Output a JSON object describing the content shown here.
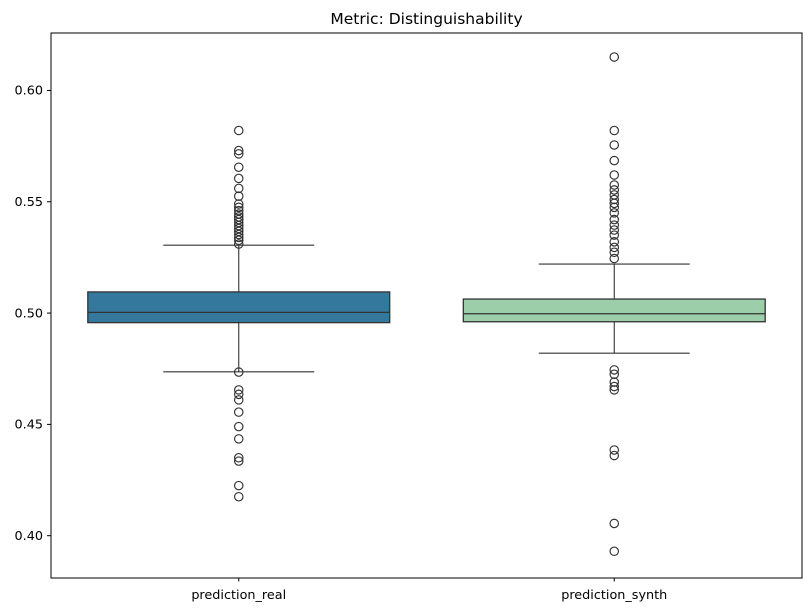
{
  "chart_data": {
    "type": "boxplot",
    "title": "Metric: Distinguishability",
    "categories": [
      "prediction_real",
      "prediction_synth"
    ],
    "ylim": [
      0.381,
      0.6258
    ],
    "yticks": [
      0.4,
      0.45,
      0.5,
      0.55,
      0.6
    ],
    "ytick_labels": [
      "0.40",
      "0.45",
      "0.50",
      "0.55",
      "0.60"
    ],
    "grid": false,
    "legend": "none",
    "series": [
      {
        "name": "prediction_real",
        "color": "#35789E",
        "q1": 0.4957,
        "median": 0.5003,
        "q3": 0.5095,
        "whisker_low": 0.4736,
        "whisker_high": 0.5305,
        "outliers_high": [
          0.582,
          0.573,
          0.5715,
          0.5655,
          0.5605,
          0.556,
          0.5525,
          0.549,
          0.5475,
          0.546,
          0.5445,
          0.5432,
          0.542,
          0.5407,
          0.5393,
          0.538,
          0.5367,
          0.5353,
          0.534,
          0.5327,
          0.531
        ],
        "outliers_low": [
          0.4735,
          0.4655,
          0.4635,
          0.461,
          0.4555,
          0.449,
          0.4435,
          0.435,
          0.4335,
          0.4225,
          0.4175
        ]
      },
      {
        "name": "prediction_synth",
        "color": "#9CCEA9",
        "q1": 0.4961,
        "median": 0.4997,
        "q3": 0.5063,
        "whisker_low": 0.482,
        "whisker_high": 0.522,
        "outliers_high": [
          0.615,
          0.582,
          0.5755,
          0.5685,
          0.562,
          0.5575,
          0.5553,
          0.5531,
          0.551,
          0.5493,
          0.5475,
          0.545,
          0.542,
          0.5395,
          0.5373,
          0.535,
          0.532,
          0.5295,
          0.5273,
          0.5245
        ],
        "outliers_low": [
          0.4745,
          0.4725,
          0.469,
          0.467,
          0.4655,
          0.4385,
          0.436,
          0.4055,
          0.393
        ]
      }
    ],
    "colors": {
      "line": "#333333",
      "frame": "#000000",
      "text": "#000000",
      "background": "#ffffff"
    }
  }
}
